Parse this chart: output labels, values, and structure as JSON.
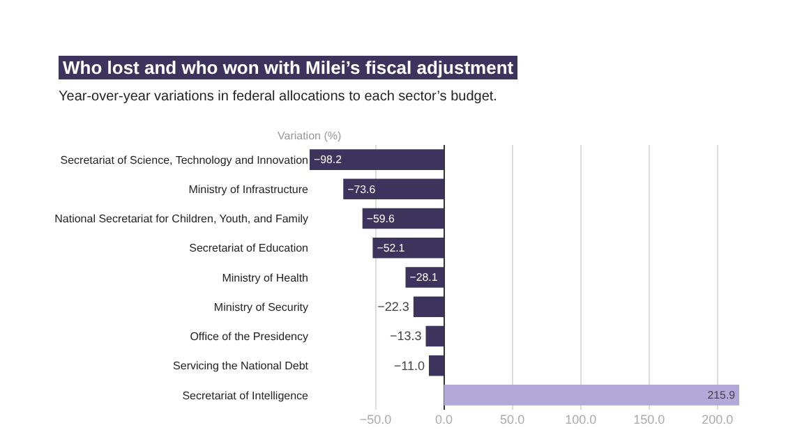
{
  "chart_data": {
    "type": "bar",
    "orientation": "horizontal",
    "title": "Who lost and who won with Milei’s fiscal adjustment",
    "subtitle": "Year-over-year variations in federal allocations to each sector’s budget.",
    "xlabel": "Variation (%)",
    "categories": [
      "Secretariat of Science, Technology and Innovation",
      "Ministry of Infrastructure",
      "National Secretariat for Children, Youth, and Family",
      "Secretariat of Education",
      "Ministry of Health",
      "Ministry of Security",
      "Office of the Presidency",
      "Servicing the National Debt",
      "Secretariat of Intelligence"
    ],
    "values": [
      -98.2,
      -73.6,
      -59.6,
      -52.1,
      -28.1,
      -22.3,
      -13.3,
      -11.0,
      215.9
    ],
    "colors": [
      "#3d345e",
      "#3d345e",
      "#3d345e",
      "#3d345e",
      "#3d345e",
      "#3d345e",
      "#3d345e",
      "#3d345e",
      "#b3a9d8"
    ],
    "value_labels": [
      "−98.2",
      "−73.6",
      "−59.6",
      "−52.1",
      "−28.1",
      "−22.3",
      "−13.3",
      "−11.0",
      "215.9"
    ],
    "xlim": [
      -98.2,
      215.9
    ],
    "xticks": [
      {
        "value": -50,
        "label": "−50.0"
      },
      {
        "value": 0,
        "label": "0.0"
      },
      {
        "value": 50,
        "label": "50.0"
      },
      {
        "value": 100,
        "label": "100.0"
      },
      {
        "value": 150,
        "label": "150.0"
      },
      {
        "value": 200,
        "label": "200.0"
      }
    ],
    "grid": "x"
  }
}
